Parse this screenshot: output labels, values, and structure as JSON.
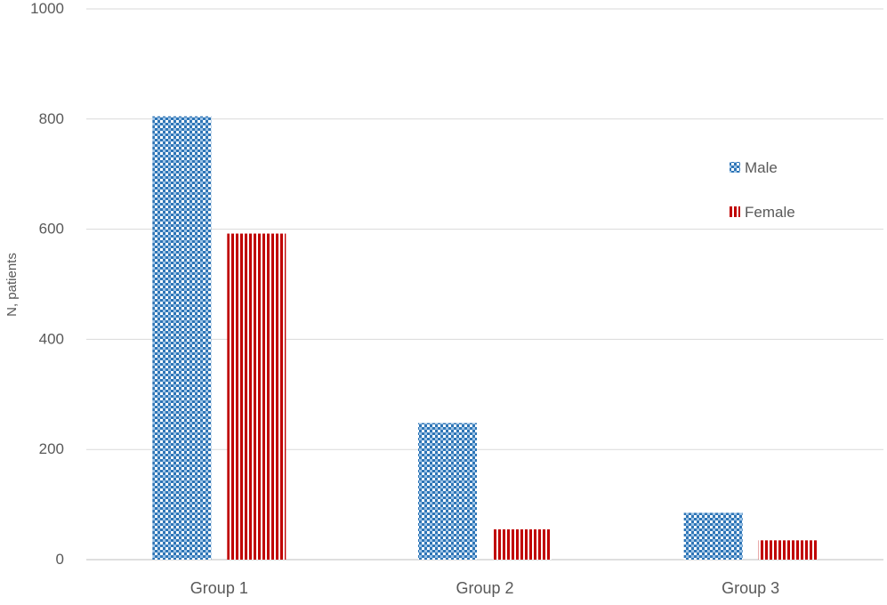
{
  "chart_data": {
    "type": "bar",
    "title": "",
    "xlabel": "",
    "ylabel": "N, patients",
    "ylim": [
      0,
      1000
    ],
    "yticks": [
      0,
      200,
      400,
      600,
      800,
      1000
    ],
    "grid": true,
    "legend_position": "right",
    "categories": [
      "Group 1",
      "Group 2",
      "Group 3"
    ],
    "series": [
      {
        "name": "Male",
        "values": [
          805,
          248,
          85
        ],
        "color": "#2e75b6",
        "pattern": "checker"
      },
      {
        "name": "Female",
        "values": [
          592,
          55,
          35
        ],
        "color": "#c00000",
        "pattern": "vertical-stripes"
      }
    ]
  }
}
